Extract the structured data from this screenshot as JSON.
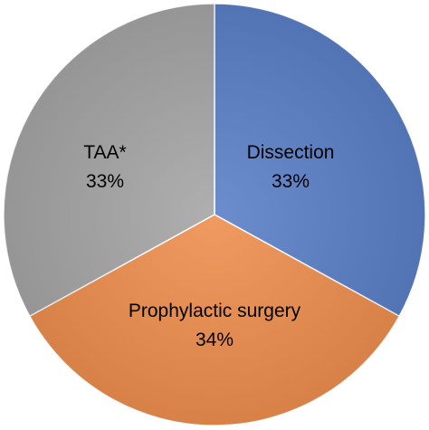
{
  "chart_data": {
    "type": "pie",
    "start_angle_deg": 0,
    "direction": "clockwise",
    "slices": [
      {
        "label": "Dissection",
        "value": 33,
        "value_label": "33%",
        "color": "#5b80c8"
      },
      {
        "label": "Prophylactic surgery",
        "value": 34,
        "value_label": "34%",
        "color": "#ef8f4f"
      },
      {
        "label": "TAA*",
        "value": 33,
        "value_label": "33%",
        "color": "#a6a6a6"
      }
    ]
  }
}
